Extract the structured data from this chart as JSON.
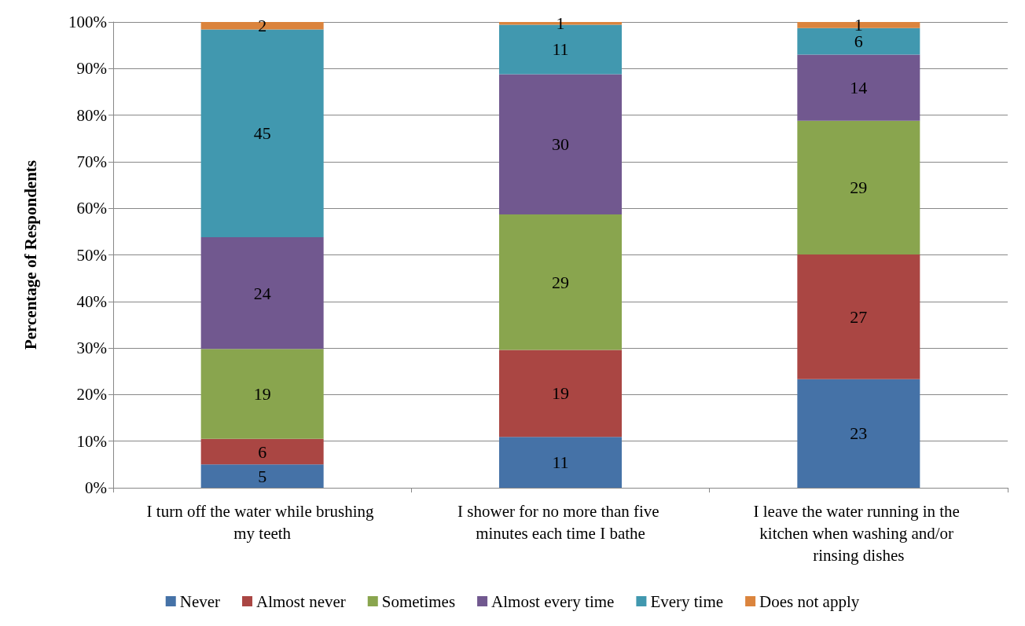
{
  "chart_data": {
    "type": "bar",
    "stacked": true,
    "ylabel": "Percentage of Respondents",
    "categories": [
      "I turn off the water while brushing my teeth",
      "I shower for no more than five minutes each time I bathe",
      "I leave the water running in the kitchen when washing and/or rinsing dishes"
    ],
    "series": [
      {
        "name": "Never",
        "color": "#4572a7",
        "values": [
          5,
          10.9,
          23.3
        ],
        "value_labels": [
          "5",
          "11",
          "23"
        ]
      },
      {
        "name": "Almost never",
        "color": "#aa4643",
        "values": [
          5.5,
          18.7,
          26.8
        ],
        "value_labels": [
          "6",
          "19",
          "27"
        ]
      },
      {
        "name": "Sometimes",
        "color": "#89a54e",
        "values": [
          19.3,
          29.1,
          28.7
        ],
        "value_labels": [
          "19",
          "29",
          "29"
        ]
      },
      {
        "name": "Almost every time",
        "color": "#71588f",
        "values": [
          24,
          30.1,
          14.2
        ],
        "value_labels": [
          "24",
          "30",
          "14"
        ]
      },
      {
        "name": "Every time",
        "color": "#4198af",
        "values": [
          44.6,
          10.6,
          5.7
        ],
        "value_labels": [
          "45",
          "11",
          "6"
        ]
      },
      {
        "name": "Does not apply",
        "color": "#db843d",
        "values": [
          1.6,
          0.6,
          1.3
        ],
        "value_labels": [
          "2",
          "1",
          "1"
        ]
      }
    ],
    "ylim": [
      0,
      100
    ],
    "yticks": [
      {
        "value": 0,
        "label": "0%"
      },
      {
        "value": 10,
        "label": "10%"
      },
      {
        "value": 20,
        "label": "20%"
      },
      {
        "value": 30,
        "label": "30%"
      },
      {
        "value": 40,
        "label": "40%"
      },
      {
        "value": 50,
        "label": "50%"
      },
      {
        "value": 60,
        "label": "60%"
      },
      {
        "value": 70,
        "label": "70%"
      },
      {
        "value": 80,
        "label": "80%"
      },
      {
        "value": 90,
        "label": "90%"
      },
      {
        "value": 100,
        "label": "100%"
      }
    ],
    "grid": "y",
    "legend": "bottom"
  }
}
